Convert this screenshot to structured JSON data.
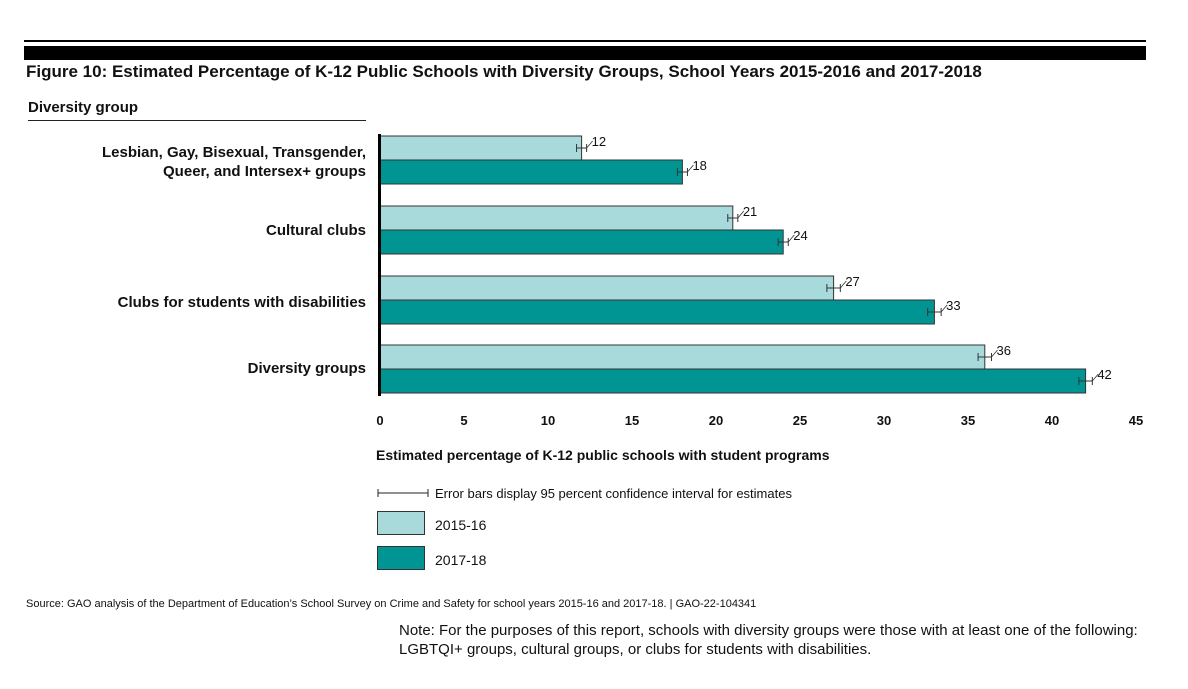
{
  "figure": {
    "title": "Figure 10: Estimated Percentage of K-12 Public Schools with Diversity Groups, School Years 2015-2016 and 2017-2018",
    "category_heading": "Diversity group"
  },
  "chart_data": {
    "type": "bar",
    "orientation": "horizontal",
    "title": "Figure 10: Estimated Percentage of K-12 Public Schools with Diversity Groups, School Years 2015-2016 and 2017-2018",
    "ylabel": "Diversity group",
    "xlabel": "Estimated percentage of K-12 public schools with student programs",
    "categories": [
      [
        "Lesbian, Gay, Bisexual, Transgender,",
        "Queer, and Intersex+ groups"
      ],
      [
        "Cultural clubs"
      ],
      [
        "Clubs for students with disabilities"
      ],
      [
        "Diversity groups"
      ]
    ],
    "series": [
      {
        "name": "2015-16",
        "color": "#a8dadb",
        "values": [
          12,
          21,
          27,
          36
        ],
        "ci_half_width": [
          0.3,
          0.3,
          0.4,
          0.4
        ]
      },
      {
        "name": "2017-18",
        "color": "#009593",
        "values": [
          18,
          24,
          33,
          42
        ],
        "ci_half_width": [
          0.3,
          0.3,
          0.4,
          0.4
        ]
      }
    ],
    "data_labels": [
      [
        "12",
        "21",
        "27",
        "36"
      ],
      [
        "18",
        "24",
        "33",
        "42"
      ]
    ],
    "xlim": [
      0,
      45
    ],
    "xticks": [
      "0",
      "5",
      "10",
      "15",
      "20",
      "25",
      "30",
      "35",
      "40",
      "45"
    ],
    "grid": false,
    "legend": {
      "placement": "bottom",
      "error_bar_note": "Error bars display 95 percent confidence interval for estimates"
    }
  },
  "source": "Source: GAO analysis of the Department of Education’s School Survey on Crime and Safety for school years 2015-16 and 2017-18.  |  GAO-22-104341",
  "note": "Note: For the purposes of this report, schools with diversity groups were those with at least one of the following: LGBTQI+ groups, cultural groups, or clubs for students with disabilities."
}
